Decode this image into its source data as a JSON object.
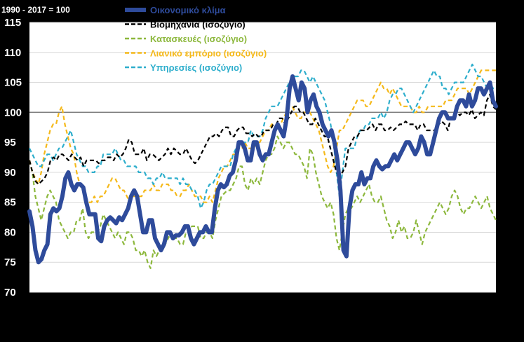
{
  "chart_data": {
    "type": "line",
    "base_note": "1990 - 2017 = 100",
    "ylim": [
      70,
      115
    ],
    "yticks": [
      "70",
      "75",
      "80",
      "85",
      "90",
      "95",
      "100",
      "105",
      "110",
      "115"
    ],
    "reference_line": 100,
    "grid": true,
    "legend_position": "top-center",
    "series": [
      {
        "name": "Οικονομικό κλίμα",
        "color": "#2e4b9b",
        "style": "solid-thick",
        "values": [
          83.5,
          81,
          77,
          75,
          75.5,
          77,
          78,
          83,
          84,
          83.5,
          84,
          86,
          89,
          90,
          88,
          87,
          88,
          88,
          87.5,
          85,
          83,
          83,
          83,
          79,
          78.5,
          81,
          82,
          82.5,
          82,
          81.5,
          82.5,
          82,
          83,
          84,
          86,
          87,
          86,
          83,
          80,
          80,
          82,
          82,
          79,
          78,
          77,
          78,
          80,
          80,
          79,
          79.5,
          79.5,
          80,
          81,
          81,
          79,
          78,
          79,
          80,
          80,
          81,
          80,
          80,
          84,
          87,
          88,
          87.5,
          88,
          89.5,
          90,
          92,
          95,
          95,
          94,
          92,
          92,
          95,
          95,
          93,
          92,
          93,
          93,
          95,
          97,
          98,
          97,
          96,
          99,
          104,
          106,
          104,
          102,
          105,
          104,
          100,
          102,
          103,
          101,
          100,
          98,
          97,
          96,
          97,
          95,
          92,
          87,
          77,
          76,
          84,
          87,
          88,
          88,
          90,
          88,
          89,
          89,
          91,
          92,
          91,
          90.5,
          91,
          91,
          92,
          93,
          92,
          93,
          94,
          95,
          95,
          94,
          93,
          94,
          96,
          95,
          93,
          93,
          95,
          97,
          99,
          100,
          100,
          99,
          99,
          99,
          101,
          102,
          102,
          101,
          103,
          101,
          102,
          104,
          104,
          103,
          104,
          105,
          102,
          101
        ]
      },
      {
        "name": "Βιομηχανία (ισοζύγιο)",
        "color": "#ffffff",
        "style": "dashed",
        "values": [
          92,
          90,
          88.5,
          88,
          88.5,
          89,
          90,
          92,
          92.5,
          92,
          93,
          93,
          92.5,
          92,
          93,
          92.5,
          92,
          92.5,
          91,
          92,
          92,
          92,
          92,
          91.5,
          92,
          92,
          92.5,
          92.5,
          92,
          93,
          92.5,
          93,
          94,
          95.5,
          95,
          93,
          93,
          93,
          94,
          92,
          93,
          93,
          92.5,
          92,
          92.5,
          93,
          94,
          93,
          94,
          93.5,
          93,
          93,
          94,
          93,
          92,
          91.5,
          92,
          93,
          94,
          95,
          96,
          96,
          96.5,
          96,
          97,
          97.5,
          97.5,
          96,
          96,
          97,
          97.5,
          97.5,
          96.5,
          96.5,
          96,
          96.5,
          96,
          96,
          97,
          97,
          97,
          98,
          98,
          99,
          99,
          98,
          99,
          100,
          101,
          101,
          100,
          100,
          99,
          98,
          98,
          99,
          98,
          97,
          96,
          96,
          94,
          92,
          90,
          89.5,
          90,
          91,
          94,
          95,
          96,
          96,
          97,
          97,
          97,
          97.5,
          98,
          97,
          98,
          98,
          97,
          97,
          97.5,
          97,
          97.5,
          98,
          98,
          98.5,
          98,
          98,
          98,
          97,
          98,
          98,
          97,
          97,
          97,
          97,
          98,
          98.5,
          98,
          97,
          99,
          99,
          100,
          99.5,
          100,
          100,
          99.5,
          100.5,
          99,
          99.5,
          100,
          99.5,
          102,
          103,
          101,
          100.5
        ]
      },
      {
        "name": "Κατασκευές (ισοζύγιο)",
        "color": "#8db83d",
        "style": "dashed",
        "values": [
          92,
          90,
          86,
          84,
          82,
          84,
          86,
          87,
          86,
          85,
          82,
          81,
          80,
          79,
          80,
          80,
          82,
          82,
          84,
          80,
          79,
          80,
          80,
          80,
          81,
          83,
          82,
          81,
          80,
          79,
          80,
          79,
          78,
          80,
          80,
          79,
          77,
          77,
          76,
          77,
          75,
          74,
          77,
          76,
          77,
          78,
          78,
          79,
          80,
          79,
          79,
          78,
          78,
          80,
          80,
          81,
          81,
          81,
          79,
          79,
          80,
          80,
          79,
          82,
          84,
          86,
          86.5,
          87,
          87,
          88,
          89,
          91,
          91,
          88,
          87,
          89,
          88,
          89,
          88,
          90,
          92,
          93,
          93,
          94,
          96,
          95,
          94,
          95,
          95,
          94,
          93,
          93,
          92,
          91,
          89,
          94,
          93,
          90,
          88,
          86,
          85,
          84,
          85,
          83,
          79,
          77,
          80,
          83,
          84,
          84,
          85,
          86,
          85,
          86,
          87,
          88,
          86,
          85,
          85,
          86,
          84,
          82,
          81,
          79,
          80,
          82,
          80,
          81,
          79,
          79,
          80,
          82,
          80,
          78,
          80,
          81,
          82,
          83,
          84,
          85,
          84,
          83,
          84,
          86,
          87,
          86,
          84,
          83,
          84,
          84,
          85,
          86,
          85,
          84,
          85,
          86,
          84,
          83,
          82
        ]
      },
      {
        "name": "Λιανικό εμπόριο (ισοζύγιο)",
        "color": "#f5b91a",
        "style": "dashed",
        "values": [
          92,
          90,
          89,
          88,
          90,
          93,
          95,
          97,
          98,
          98,
          100,
          101,
          98,
          96,
          94,
          93,
          90,
          88,
          87,
          86,
          85,
          85,
          86,
          85,
          86,
          86,
          87,
          88,
          89,
          89,
          88,
          87,
          87,
          86,
          85,
          86,
          86,
          86,
          86,
          87,
          87,
          87,
          88,
          87,
          87,
          88,
          88,
          88,
          87,
          87,
          86,
          86,
          87,
          87,
          88,
          87,
          86,
          86,
          86,
          85,
          85,
          86,
          85,
          87,
          89,
          90,
          91,
          91,
          92,
          93,
          93,
          94,
          94,
          95,
          94,
          94,
          94,
          95,
          95,
          96,
          97,
          97,
          98,
          98,
          98,
          98,
          99,
          100,
          101,
          101,
          100,
          99,
          99,
          100,
          100,
          100,
          99,
          98,
          97,
          95,
          93,
          91,
          90,
          91,
          94,
          97,
          97,
          98,
          99,
          100,
          101,
          102,
          102,
          102,
          101,
          101,
          102,
          103,
          104,
          105,
          104,
          104,
          103,
          104,
          103,
          102,
          101,
          101,
          101,
          101,
          100,
          100,
          101,
          100,
          100,
          101,
          101,
          101,
          101,
          101,
          101,
          102,
          102,
          102,
          103,
          104,
          104,
          104,
          104,
          103,
          104,
          105,
          106,
          107,
          107,
          107,
          107,
          107,
          107
        ]
      },
      {
        "name": "Υπηρεσίες (ισοζύγιο)",
        "color": "#2eaecc",
        "style": "dashed",
        "values": [
          94,
          93,
          92,
          91,
          91,
          92,
          93,
          93,
          92,
          93,
          94,
          94,
          95,
          96,
          97,
          95,
          93,
          92,
          91,
          91,
          90,
          90,
          90,
          91,
          91,
          93,
          93,
          93,
          93,
          94,
          93,
          92,
          92,
          91,
          91,
          91,
          91,
          90,
          90,
          90,
          89,
          89,
          88,
          89,
          89,
          90,
          89,
          89,
          89,
          89,
          89,
          88,
          89,
          88,
          88,
          87,
          87,
          86,
          84,
          85,
          87,
          88,
          88,
          89,
          90,
          91,
          91,
          91,
          91,
          93,
          94,
          95,
          95,
          95,
          95,
          97,
          96,
          96,
          96,
          97,
          99,
          100,
          101,
          101,
          101,
          102,
          103,
          104,
          105,
          106,
          106,
          106,
          107,
          107,
          106,
          105,
          106,
          105,
          104,
          103,
          102,
          100,
          98,
          95,
          90,
          86,
          90,
          94,
          94,
          94,
          94,
          96,
          97,
          97,
          98,
          98,
          99,
          99,
          99,
          100,
          99,
          100,
          102,
          103,
          103,
          104,
          104,
          103,
          102,
          101,
          100,
          101,
          102,
          103,
          104,
          105,
          106,
          107,
          106,
          106,
          104,
          104,
          103,
          104,
          105,
          105,
          105,
          105,
          106,
          107,
          108,
          107,
          106,
          106,
          105,
          104,
          105,
          104,
          104
        ]
      }
    ]
  }
}
